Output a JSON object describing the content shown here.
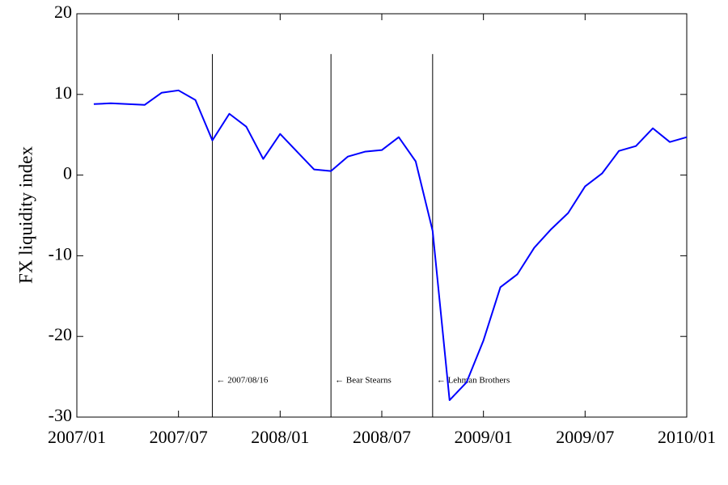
{
  "chart_data": {
    "type": "line",
    "y_label": "FX liquidity index",
    "x": [
      "2007/02",
      "2007/03",
      "2007/04",
      "2007/05",
      "2007/06",
      "2007/07",
      "2007/08",
      "2007/09",
      "2007/10",
      "2007/11",
      "2007/12",
      "2008/01",
      "2008/02",
      "2008/03",
      "2008/04",
      "2008/05",
      "2008/06",
      "2008/07",
      "2008/08",
      "2008/09",
      "2008/10",
      "2008/11",
      "2008/12",
      "2009/01",
      "2009/02",
      "2009/03",
      "2009/04",
      "2009/05",
      "2009/06",
      "2009/07",
      "2009/08",
      "2009/09",
      "2009/10",
      "2009/11",
      "2009/12",
      "2010/01"
    ],
    "series": [
      {
        "color": "#0000ff",
        "values": [
          8.8,
          8.9,
          8.8,
          8.7,
          10.2,
          10.5,
          9.3,
          4.3,
          7.6,
          6.0,
          2.0,
          5.1,
          2.9,
          0.7,
          0.5,
          2.3,
          2.9,
          3.1,
          4.7,
          1.7,
          -6.9,
          -27.9,
          -25.7,
          -20.5,
          -13.9,
          -12.3,
          -9.0,
          -6.7,
          -4.7,
          -1.4,
          0.2,
          3.0,
          3.6,
          5.8,
          4.1,
          4.7
        ]
      }
    ],
    "xlim": [
      "2007/01",
      "2010/01"
    ],
    "xticks": [
      "2007/01",
      "2007/07",
      "2008/01",
      "2008/07",
      "2009/01",
      "2009/07",
      "2010/01"
    ],
    "ylim": [
      -30,
      20
    ],
    "yticks": [
      -30,
      -20,
      -10,
      0,
      10,
      20
    ],
    "annotations": [
      {
        "x": "2007/09",
        "text": "← 2007/08/16"
      },
      {
        "x": "2008/04",
        "text": "← Bear Stearns"
      },
      {
        "x": "2008/10",
        "text": "← Lehman Brothers"
      }
    ],
    "grid": false
  }
}
